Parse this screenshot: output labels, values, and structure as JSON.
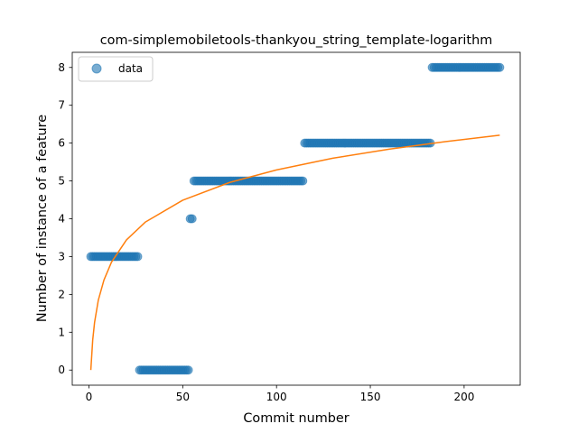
{
  "chart_data": {
    "type": "scatter",
    "title": "com-simplemobiletools-thankyou_string_template-logarithm",
    "xlabel": "Commit number",
    "ylabel": "Number of instance of a feature",
    "xlim": [
      -8.9,
      229.9
    ],
    "ylim": [
      -0.4,
      8.4
    ],
    "xticks": [
      0,
      50,
      100,
      150,
      200
    ],
    "yticks": [
      0,
      1,
      2,
      3,
      4,
      5,
      6,
      7,
      8
    ],
    "grid": false,
    "legend": {
      "position": "top-left",
      "entries": [
        "data"
      ]
    },
    "colors": {
      "points": "#1f77b4",
      "fit": "#ff7f0e"
    },
    "series": [
      {
        "name": "data",
        "type": "scatter",
        "segments": [
          {
            "x_start": 1,
            "x_end": 26,
            "y": 3
          },
          {
            "x_start": 27,
            "x_end": 53,
            "y": 0
          },
          {
            "x_start": 54,
            "x_end": 55,
            "y": 4
          },
          {
            "x_start": 56,
            "x_end": 114,
            "y": 5
          },
          {
            "x_start": 115,
            "x_end": 182,
            "y": 6
          },
          {
            "x_start": 183,
            "x_end": 219,
            "y": 8
          }
        ]
      },
      {
        "type": "line",
        "fit": "logarithmic",
        "x": [
          1,
          2,
          3,
          5,
          8,
          12,
          20,
          30,
          50,
          75,
          100,
          130,
          160,
          190,
          219
        ],
        "y": [
          0.0,
          0.79,
          1.26,
          1.85,
          2.38,
          2.85,
          3.44,
          3.91,
          4.49,
          4.96,
          5.29,
          5.6,
          5.84,
          6.04,
          6.21
        ]
      }
    ]
  }
}
